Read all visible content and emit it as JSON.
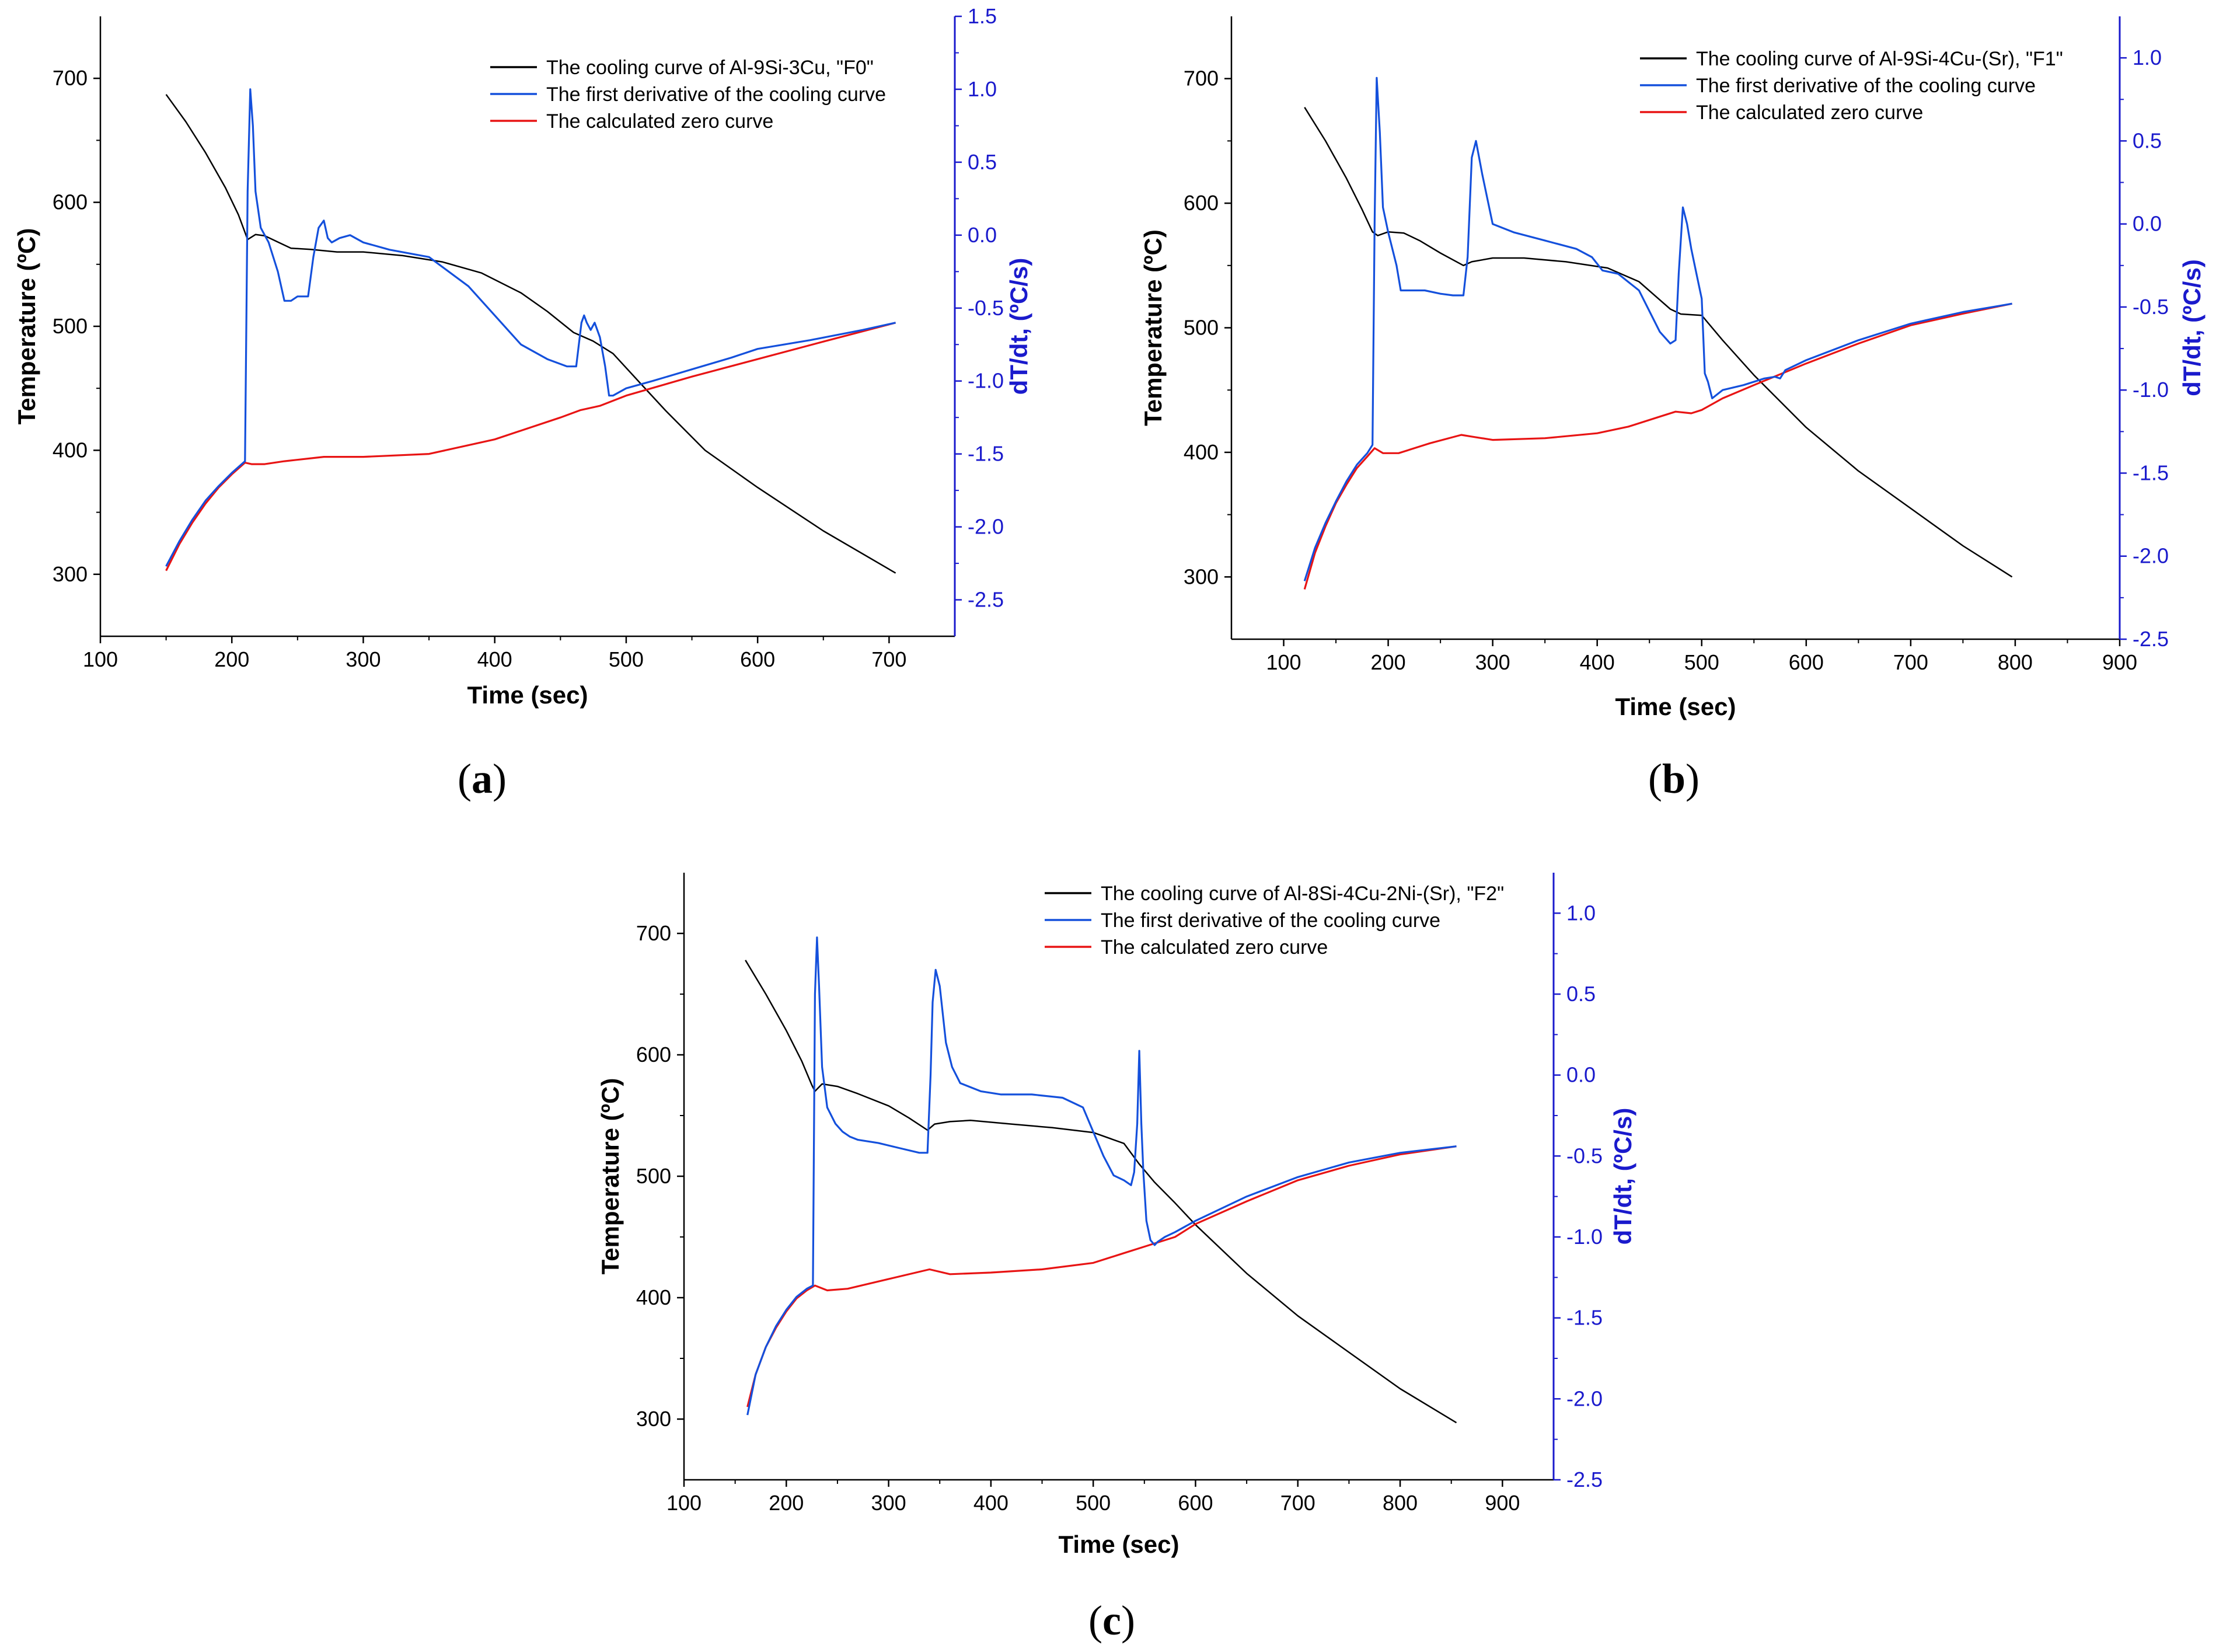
{
  "figure": {
    "panels": [
      "(a)",
      "(b)",
      "(c)"
    ]
  },
  "chart_data": [
    {
      "id": "a",
      "panel_label": "a",
      "type": "line",
      "xlabel": "Time (sec)",
      "ylabel": "Temperature (ºC)",
      "y2label": "dT/dt, (ºC/s)",
      "xlim": [
        100,
        750
      ],
      "ylim": [
        250,
        750
      ],
      "y2lim": [
        -2.75,
        1.5
      ],
      "xticks": [
        100,
        200,
        300,
        400,
        500,
        600,
        700
      ],
      "yticks": [
        300,
        400,
        500,
        600,
        700
      ],
      "y2ticks": [
        -2.5,
        -2.0,
        -1.5,
        -1.0,
        -0.5,
        0.0,
        0.5,
        1.0,
        1.5
      ],
      "y2ticklabels": [
        "-2.5",
        "-2.0",
        "-1.5",
        "-1.0",
        "-0.5",
        "0.0",
        "0.5",
        "1.0",
        "1.5"
      ],
      "legend_position": "top-right",
      "series": [
        {
          "name": "The cooling curve of Al-9Si-3Cu, \"F0\"",
          "color": "#000000",
          "axis": "left",
          "x": [
            150,
            165,
            180,
            195,
            205,
            212,
            218,
            225,
            235,
            245,
            260,
            280,
            300,
            330,
            360,
            390,
            420,
            440,
            460,
            475,
            490,
            510,
            530,
            560,
            600,
            650,
            705
          ],
          "y": [
            687,
            665,
            640,
            612,
            590,
            570,
            574,
            573,
            568,
            563,
            562,
            560,
            560,
            557,
            552,
            543,
            527,
            512,
            495,
            488,
            478,
            455,
            432,
            400,
            370,
            335,
            301
          ]
        },
        {
          "name": "The first derivative of the cooling curve",
          "color": "#1450dc",
          "axis": "right",
          "x": [
            150,
            160,
            170,
            180,
            190,
            200,
            210,
            212,
            214,
            216,
            218,
            222,
            228,
            235,
            240,
            245,
            250,
            258,
            262,
            266,
            270,
            273,
            276,
            282,
            290,
            300,
            320,
            350,
            380,
            400,
            420,
            440,
            455,
            462,
            466,
            468,
            470,
            473,
            476,
            480,
            484,
            487,
            490,
            500,
            520,
            550,
            580,
            600,
            640,
            680,
            705
          ],
          "y": [
            -2.27,
            -2.1,
            -1.95,
            -1.82,
            -1.72,
            -1.63,
            -1.55,
            0.3,
            1.0,
            0.75,
            0.3,
            0.05,
            -0.05,
            -0.25,
            -0.45,
            -0.45,
            -0.42,
            -0.42,
            -0.15,
            0.05,
            0.1,
            -0.02,
            -0.05,
            -0.02,
            0.0,
            -0.05,
            -0.1,
            -0.15,
            -0.35,
            -0.55,
            -0.75,
            -0.85,
            -0.9,
            -0.9,
            -0.6,
            -0.55,
            -0.6,
            -0.65,
            -0.6,
            -0.7,
            -0.9,
            -1.1,
            -1.1,
            -1.05,
            -1.0,
            -0.92,
            -0.84,
            -0.78,
            -0.72,
            -0.65,
            -0.6
          ]
        },
        {
          "name": "The calculated zero curve",
          "color": "#e81414",
          "axis": "right",
          "x": [
            150,
            160,
            170,
            180,
            190,
            200,
            210,
            215,
            225,
            240,
            260,
            270,
            300,
            350,
            400,
            450,
            465,
            480,
            500,
            550,
            600,
            650,
            705
          ],
          "y": [
            -2.3,
            -2.12,
            -1.97,
            -1.84,
            -1.73,
            -1.64,
            -1.56,
            -1.57,
            -1.57,
            -1.55,
            -1.53,
            -1.52,
            -1.52,
            -1.5,
            -1.4,
            -1.25,
            -1.2,
            -1.17,
            -1.1,
            -0.97,
            -0.85,
            -0.73,
            -0.6
          ]
        }
      ]
    },
    {
      "id": "b",
      "panel_label": "b",
      "type": "line",
      "xlabel": "Time (sec)",
      "ylabel": "Temperature (ºC)",
      "y2label": "dT/dt, (ºC/s)",
      "xlim": [
        50,
        900
      ],
      "ylim": [
        250,
        750
      ],
      "y2lim": [
        -2.5,
        1.25
      ],
      "xticks": [
        100,
        200,
        300,
        400,
        500,
        600,
        700,
        800,
        900
      ],
      "yticks": [
        300,
        400,
        500,
        600,
        700
      ],
      "y2ticks": [
        -2.5,
        -2.0,
        -1.5,
        -1.0,
        -0.5,
        0.0,
        0.5,
        1.0
      ],
      "y2ticklabels": [
        "-2.5",
        "-2.0",
        "-1.5",
        "-1.0",
        "-0.5",
        "0.0",
        "0.5",
        "1.0"
      ],
      "legend_position": "top-right",
      "series": [
        {
          "name": "The cooling curve of Al-9Si-4Cu-(Sr), \"F1\"",
          "color": "#000000",
          "axis": "left",
          "x": [
            120,
            140,
            160,
            175,
            185,
            190,
            200,
            215,
            230,
            250,
            272,
            280,
            300,
            330,
            370,
            410,
            440,
            470,
            480,
            500,
            520,
            550,
            600,
            650,
            700,
            750,
            797
          ],
          "y": [
            677,
            650,
            620,
            595,
            577,
            574,
            577,
            576,
            570,
            560,
            550,
            553,
            556,
            556,
            553,
            548,
            537,
            515,
            511,
            510,
            490,
            462,
            420,
            385,
            355,
            325,
            300
          ]
        },
        {
          "name": "The first derivative of the cooling curve",
          "color": "#1450dc",
          "axis": "right",
          "x": [
            120,
            130,
            140,
            150,
            160,
            170,
            180,
            185,
            187,
            189,
            192,
            195,
            200,
            208,
            212,
            220,
            235,
            250,
            262,
            272,
            276,
            280,
            284,
            290,
            300,
            320,
            350,
            380,
            395,
            405,
            420,
            440,
            460,
            470,
            475,
            478,
            482,
            486,
            490,
            495,
            500,
            503,
            506,
            510,
            520,
            540,
            560,
            570,
            575,
            580,
            600,
            650,
            700,
            750,
            797
          ],
          "y": [
            -2.15,
            -1.95,
            -1.8,
            -1.67,
            -1.55,
            -1.45,
            -1.38,
            -1.33,
            0.0,
            0.88,
            0.55,
            0.1,
            -0.05,
            -0.25,
            -0.4,
            -0.4,
            -0.4,
            -0.42,
            -0.43,
            -0.43,
            -0.2,
            0.4,
            0.5,
            0.3,
            0.0,
            -0.05,
            -0.1,
            -0.15,
            -0.2,
            -0.28,
            -0.3,
            -0.4,
            -0.65,
            -0.72,
            -0.7,
            -0.3,
            0.1,
            0.0,
            -0.15,
            -0.3,
            -0.45,
            -0.9,
            -0.95,
            -1.05,
            -1.0,
            -0.97,
            -0.93,
            -0.92,
            -0.93,
            -0.88,
            -0.82,
            -0.7,
            -0.6,
            -0.53,
            -0.48
          ]
        },
        {
          "name": "The calculated zero curve",
          "color": "#e81414",
          "axis": "right",
          "x": [
            120,
            130,
            140,
            150,
            160,
            170,
            180,
            187,
            195,
            210,
            240,
            270,
            280,
            300,
            350,
            400,
            430,
            460,
            475,
            490,
            500,
            520,
            550,
            600,
            650,
            700,
            750,
            797
          ],
          "y": [
            -2.2,
            -1.98,
            -1.82,
            -1.68,
            -1.57,
            -1.47,
            -1.4,
            -1.35,
            -1.38,
            -1.38,
            -1.32,
            -1.27,
            -1.28,
            -1.3,
            -1.29,
            -1.26,
            -1.22,
            -1.16,
            -1.13,
            -1.14,
            -1.12,
            -1.05,
            -0.97,
            -0.84,
            -0.72,
            -0.61,
            -0.54,
            -0.48
          ]
        }
      ]
    },
    {
      "id": "c",
      "panel_label": "c",
      "type": "line",
      "xlabel": "Time (sec)",
      "ylabel": "Temperature (ºC)",
      "y2label": "dT/dt, (ºC/s)",
      "xlim": [
        100,
        950
      ],
      "ylim": [
        250,
        750
      ],
      "y2lim": [
        -2.5,
        1.25
      ],
      "xticks": [
        100,
        200,
        300,
        400,
        500,
        600,
        700,
        800,
        900
      ],
      "yticks": [
        300,
        400,
        500,
        600,
        700
      ],
      "y2ticks": [
        -2.5,
        -2.0,
        -1.5,
        -1.0,
        -0.5,
        0.0,
        0.5,
        1.0
      ],
      "y2ticklabels": [
        "-2.5",
        "-2.0",
        "-1.5",
        "-1.0",
        "-0.5",
        "0.0",
        "0.5",
        "1.0"
      ],
      "legend_position": "top-right",
      "series": [
        {
          "name": "The cooling curve of Al-8Si-4Cu-2Ni-(Sr), \"F2\"",
          "color": "#000000",
          "axis": "left",
          "x": [
            160,
            180,
            200,
            215,
            225,
            228,
            235,
            250,
            270,
            300,
            320,
            338,
            345,
            360,
            380,
            420,
            460,
            500,
            530,
            545,
            560,
            580,
            600,
            650,
            700,
            750,
            800,
            855
          ],
          "y": [
            678,
            650,
            620,
            595,
            575,
            570,
            576,
            574,
            568,
            558,
            548,
            538,
            543,
            545,
            546,
            543,
            540,
            536,
            527,
            510,
            495,
            478,
            460,
            420,
            385,
            355,
            325,
            297
          ]
        },
        {
          "name": "The first derivative of the cooling curve",
          "color": "#1450dc",
          "axis": "right",
          "x": [
            162,
            170,
            180,
            190,
            200,
            210,
            220,
            226,
            228,
            230,
            232,
            235,
            240,
            248,
            255,
            262,
            270,
            290,
            310,
            330,
            338,
            341,
            343,
            346,
            350,
            356,
            362,
            370,
            390,
            410,
            440,
            470,
            490,
            500,
            510,
            520,
            530,
            537,
            540,
            543,
            545,
            547,
            549,
            552,
            556,
            560,
            563,
            570,
            580,
            600,
            650,
            700,
            750,
            800,
            855
          ],
          "y": [
            -2.1,
            -1.85,
            -1.68,
            -1.55,
            -1.45,
            -1.37,
            -1.32,
            -1.3,
            0.5,
            0.85,
            0.55,
            0.05,
            -0.2,
            -0.3,
            -0.35,
            -0.38,
            -0.4,
            -0.42,
            -0.45,
            -0.48,
            -0.48,
            0.0,
            0.45,
            0.65,
            0.55,
            0.2,
            0.05,
            -0.05,
            -0.1,
            -0.12,
            -0.12,
            -0.14,
            -0.2,
            -0.35,
            -0.5,
            -0.62,
            -0.65,
            -0.68,
            -0.6,
            -0.3,
            0.15,
            -0.3,
            -0.6,
            -0.9,
            -1.02,
            -1.05,
            -1.03,
            -1.0,
            -0.97,
            -0.9,
            -0.75,
            -0.63,
            -0.54,
            -0.48,
            -0.44
          ]
        },
        {
          "name": "The calculated zero curve",
          "color": "#e81414",
          "axis": "right",
          "x": [
            162,
            170,
            180,
            190,
            200,
            210,
            220,
            228,
            240,
            260,
            300,
            340,
            360,
            400,
            450,
            500,
            530,
            550,
            580,
            600,
            650,
            700,
            750,
            800,
            855
          ],
          "y": [
            -2.05,
            -1.85,
            -1.68,
            -1.56,
            -1.46,
            -1.38,
            -1.33,
            -1.3,
            -1.33,
            -1.32,
            -1.26,
            -1.2,
            -1.23,
            -1.22,
            -1.2,
            -1.16,
            -1.1,
            -1.06,
            -1.0,
            -0.92,
            -0.78,
            -0.65,
            -0.56,
            -0.49,
            -0.44
          ]
        }
      ]
    }
  ]
}
